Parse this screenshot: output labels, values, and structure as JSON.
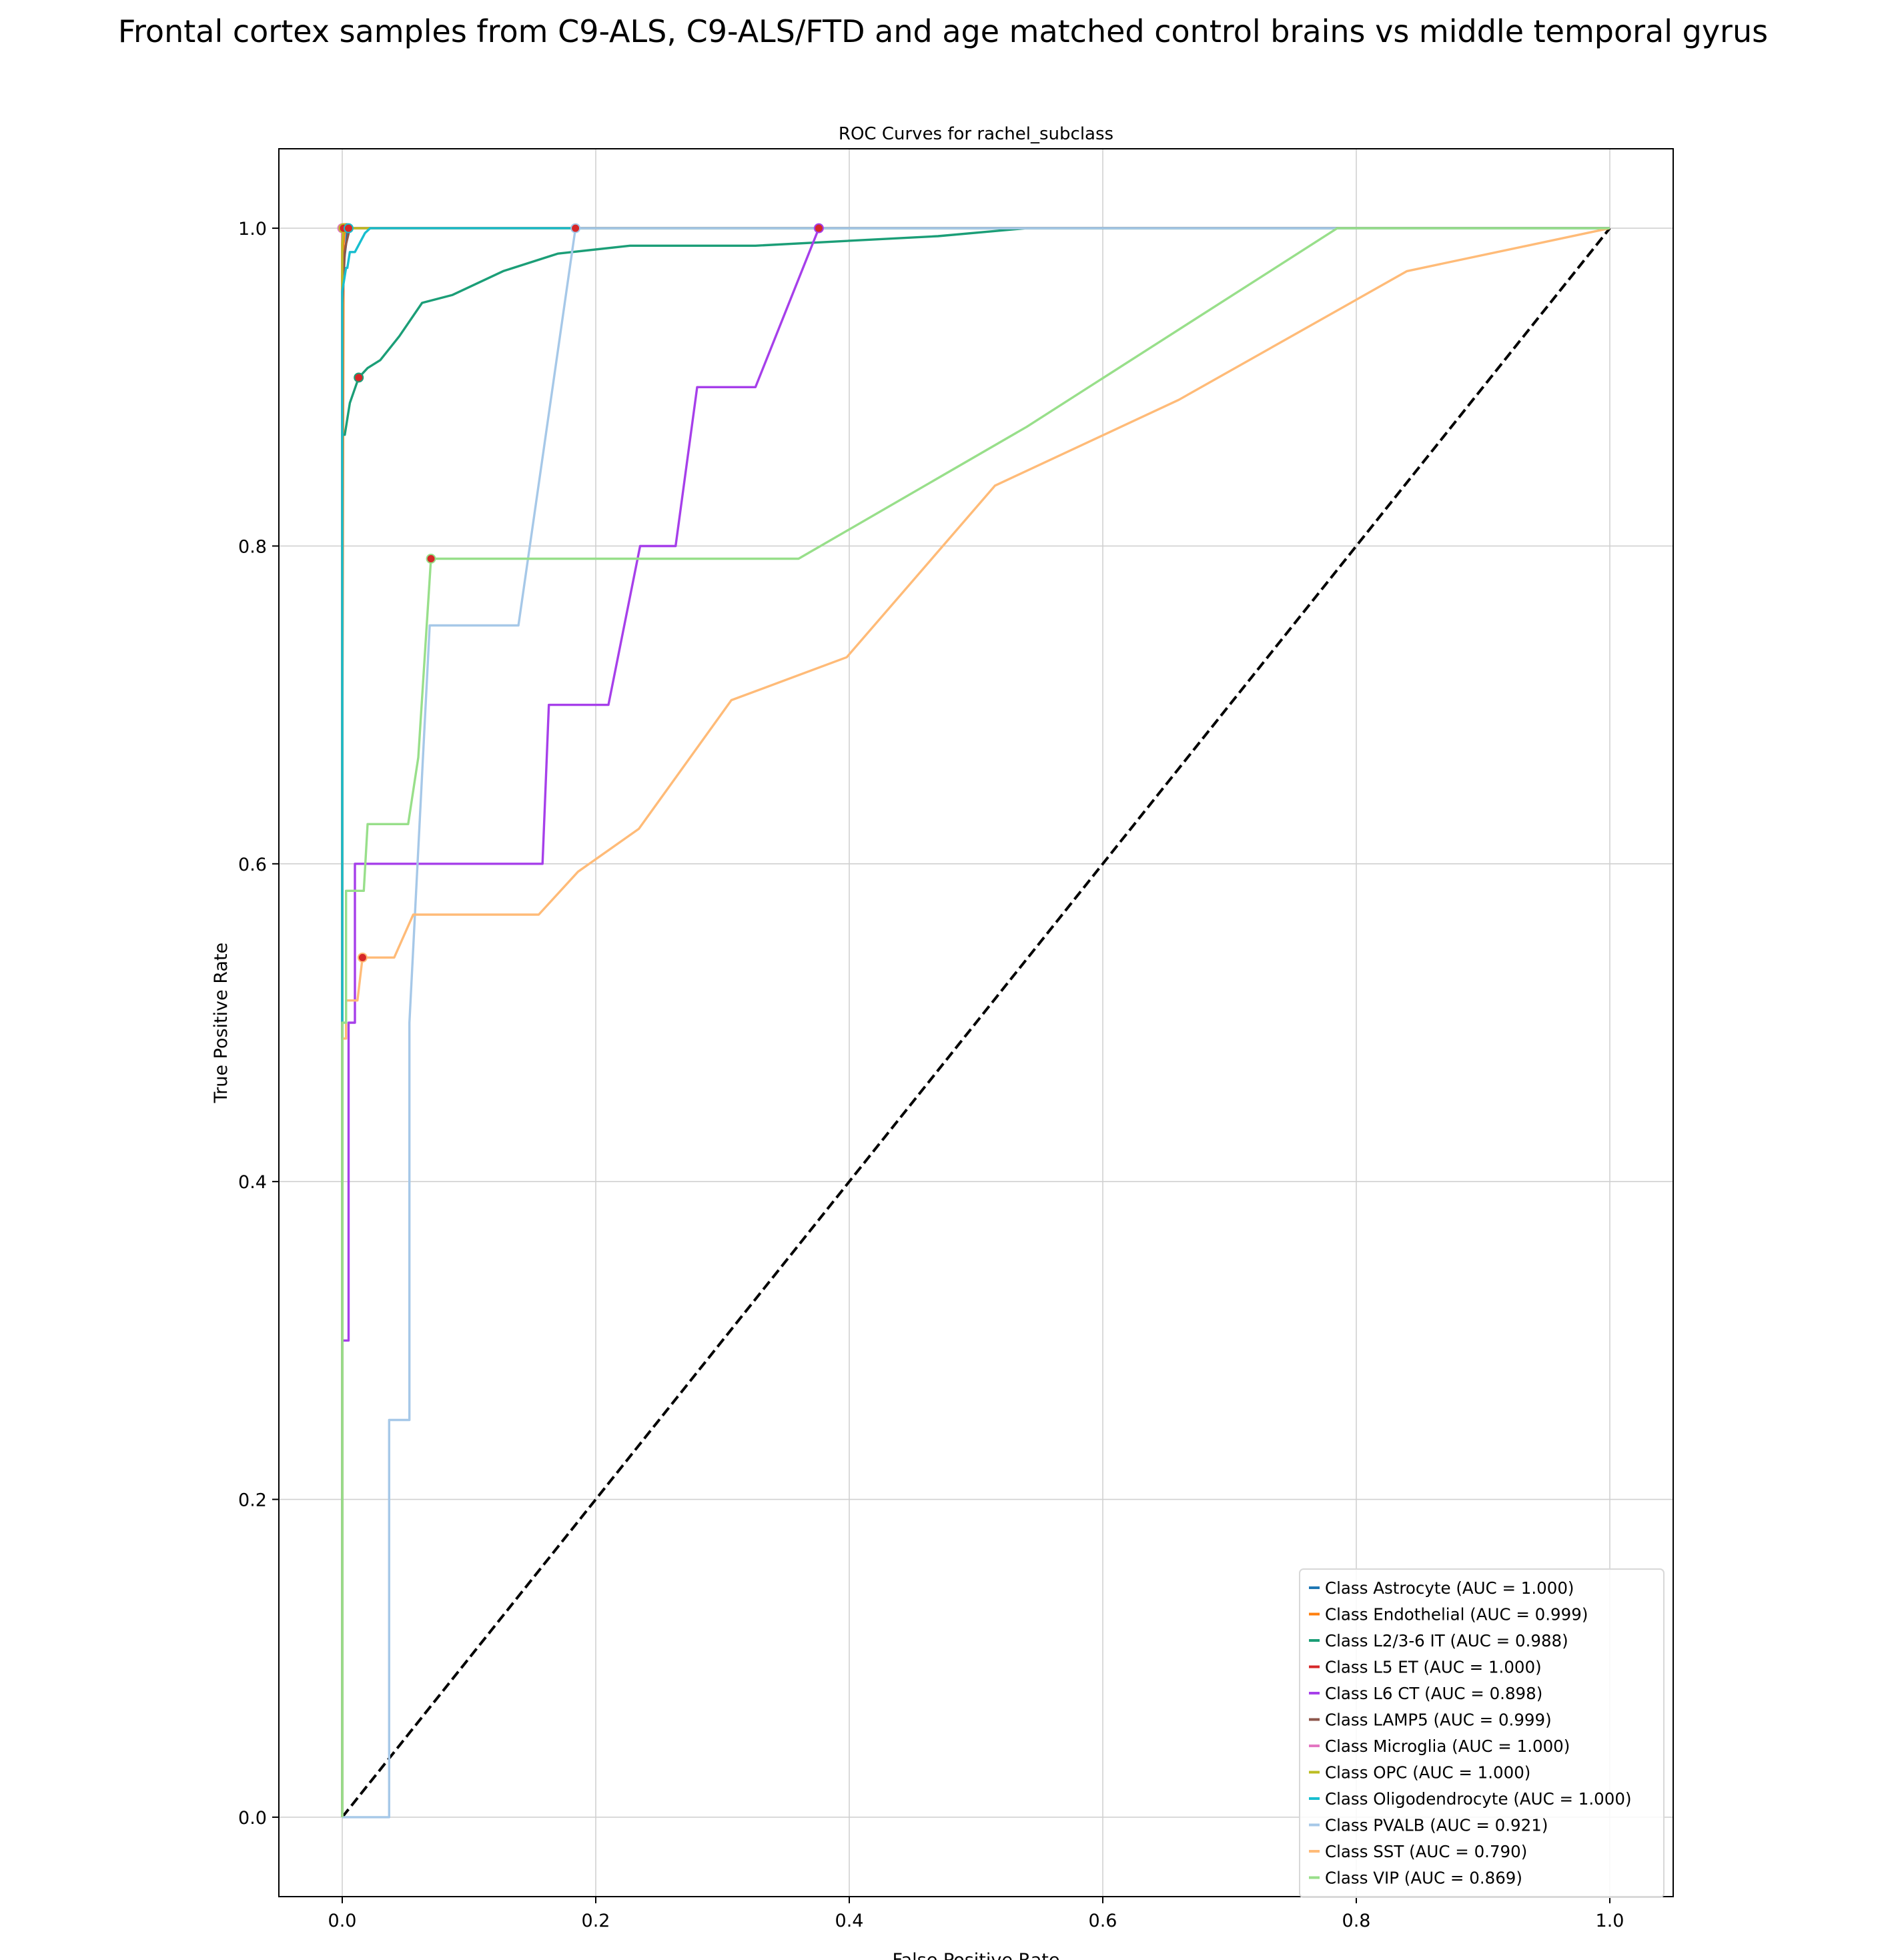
{
  "suptitle": "Frontal cortex samples from C9-ALS, C9-ALS/FTD and age matched control brains vs middle temporal gyrus",
  "chart_data": {
    "type": "line",
    "title": "ROC Curves for rachel_subclass",
    "xlabel": "False Positive Rate",
    "ylabel": "True Positive Rate",
    "xlim": [
      -0.05,
      1.05
    ],
    "ylim": [
      -0.05,
      1.05
    ],
    "xticks": [
      0.0,
      0.2,
      0.4,
      0.6,
      0.8,
      1.0
    ],
    "yticks": [
      0.0,
      0.2,
      0.4,
      0.6,
      0.8,
      1.0
    ],
    "xtick_labels": [
      "0.0",
      "0.2",
      "0.4",
      "0.6",
      "0.8",
      "1.0"
    ],
    "ytick_labels": [
      "0.0",
      "0.2",
      "0.4",
      "0.6",
      "0.8",
      "1.0"
    ],
    "grid": true,
    "legend_position": "lower right",
    "diagonal": {
      "x": [
        0,
        1
      ],
      "y": [
        0,
        1
      ],
      "color": "#000000",
      "dashed": true
    },
    "marker_color": "#d62728",
    "series": [
      {
        "name": "Class Astrocyte (AUC = 1.000)",
        "color": "#1f77b4",
        "x": [
          0,
          0,
          0.003,
          0.004,
          1.0
        ],
        "y": [
          0,
          0.97,
          0.99,
          1.0,
          1.0
        ],
        "marker": [
          0.003,
          1.0
        ]
      },
      {
        "name": "Class Endothelial (AUC = 0.999)",
        "color": "#ff7f0e",
        "x": [
          0,
          0,
          0.001,
          0.002,
          1.0
        ],
        "y": [
          0,
          0.65,
          0.99,
          1.0,
          1.0
        ],
        "marker": [
          0.002,
          1.0
        ]
      },
      {
        "name": "Class L2/3-6 IT (AUC = 0.988)",
        "color": "#1b9e77",
        "x": [
          0,
          0,
          0.002,
          0.004,
          0.006,
          0.013,
          0.02,
          0.03,
          0.045,
          0.063,
          0.087,
          0.127,
          0.17,
          0.227,
          0.326,
          0.47,
          0.54,
          1.0
        ],
        "y": [
          0,
          0.87,
          0.87,
          0.88,
          0.89,
          0.906,
          0.912,
          0.917,
          0.932,
          0.953,
          0.958,
          0.973,
          0.984,
          0.989,
          0.989,
          0.995,
          1.0,
          1.0
        ],
        "marker": [
          0.013,
          0.906
        ]
      },
      {
        "name": "Class L5 ET (AUC = 1.000)",
        "color": "#d62728",
        "x": [
          0,
          0,
          1.0
        ],
        "y": [
          0,
          1.0,
          1.0
        ],
        "marker": [
          0.001,
          1.0
        ]
      },
      {
        "name": "Class L6 CT (AUC = 0.898)",
        "color": "#a63fea",
        "x": [
          0,
          0,
          0.005,
          0.005,
          0.01,
          0.01,
          0.158,
          0.163,
          0.21,
          0.235,
          0.263,
          0.28,
          0.326,
          0.376,
          1.0
        ],
        "y": [
          0,
          0.3,
          0.3,
          0.5,
          0.5,
          0.6,
          0.6,
          0.7,
          0.7,
          0.8,
          0.8,
          0.9,
          0.9,
          1.0,
          1.0
        ],
        "marker": [
          0.376,
          1.0
        ]
      },
      {
        "name": "Class LAMP5 (AUC = 0.999)",
        "color": "#8c564b",
        "x": [
          0,
          0,
          0.002,
          0.003,
          0.006,
          1.0
        ],
        "y": [
          0,
          0.95,
          0.985,
          0.99,
          1.0,
          1.0
        ],
        "marker": [
          0.004,
          1.0
        ]
      },
      {
        "name": "Class Microglia (AUC = 1.000)",
        "color": "#e377c2",
        "x": [
          0,
          0,
          1.0
        ],
        "y": [
          0,
          1.0,
          1.0
        ],
        "marker": [
          0.0,
          1.0
        ]
      },
      {
        "name": "Class OPC (AUC = 1.000)",
        "color": "#bcbd22",
        "x": [
          0,
          0,
          0.001,
          1.0
        ],
        "y": [
          0,
          0.99,
          1.0,
          1.0
        ],
        "marker": [
          0.001,
          1.0
        ]
      },
      {
        "name": "Class Oligodendrocyte (AUC = 1.000)",
        "color": "#17becf",
        "x": [
          0,
          0,
          0.003,
          0.004,
          0.006,
          0.01,
          0.018,
          0.022,
          1.0
        ],
        "y": [
          0,
          0.96,
          0.975,
          0.975,
          0.985,
          0.985,
          0.997,
          1.0,
          1.0
        ],
        "marker": [
          0.005,
          1.0
        ]
      },
      {
        "name": "Class PVALB (AUC = 0.921)",
        "color": "#a6c8e8",
        "x": [
          0,
          0.037,
          0.037,
          0.053,
          0.053,
          0.069,
          0.069,
          0.139,
          0.184,
          1.0
        ],
        "y": [
          0,
          0,
          0.25,
          0.25,
          0.5,
          0.75,
          0.75,
          0.75,
          1.0,
          1.0
        ],
        "marker": [
          0.184,
          1.0
        ]
      },
      {
        "name": "Class SST (AUC = 0.790)",
        "color": "#ffbb78",
        "x": [
          0,
          0,
          0.003,
          0.003,
          0.012,
          0.016,
          0.041,
          0.056,
          0.155,
          0.186,
          0.234,
          0.307,
          0.398,
          0.515,
          0.66,
          0.84,
          1.0
        ],
        "y": [
          0,
          0.49,
          0.49,
          0.514,
          0.514,
          0.541,
          0.541,
          0.568,
          0.568,
          0.595,
          0.622,
          0.703,
          0.73,
          0.838,
          0.892,
          0.973,
          1.0
        ],
        "marker": [
          0.016,
          0.541
        ]
      },
      {
        "name": "Class VIP (AUC = 0.869)",
        "color": "#98df8a",
        "x": [
          0,
          0,
          0.003,
          0.003,
          0.017,
          0.02,
          0.052,
          0.06,
          0.07,
          0.36,
          0.54,
          0.785,
          1.0
        ],
        "y": [
          0,
          0.5,
          0.5,
          0.583,
          0.583,
          0.625,
          0.625,
          0.667,
          0.792,
          0.792,
          0.875,
          1.0,
          1.0
        ],
        "marker": [
          0.07,
          0.792
        ]
      }
    ]
  }
}
